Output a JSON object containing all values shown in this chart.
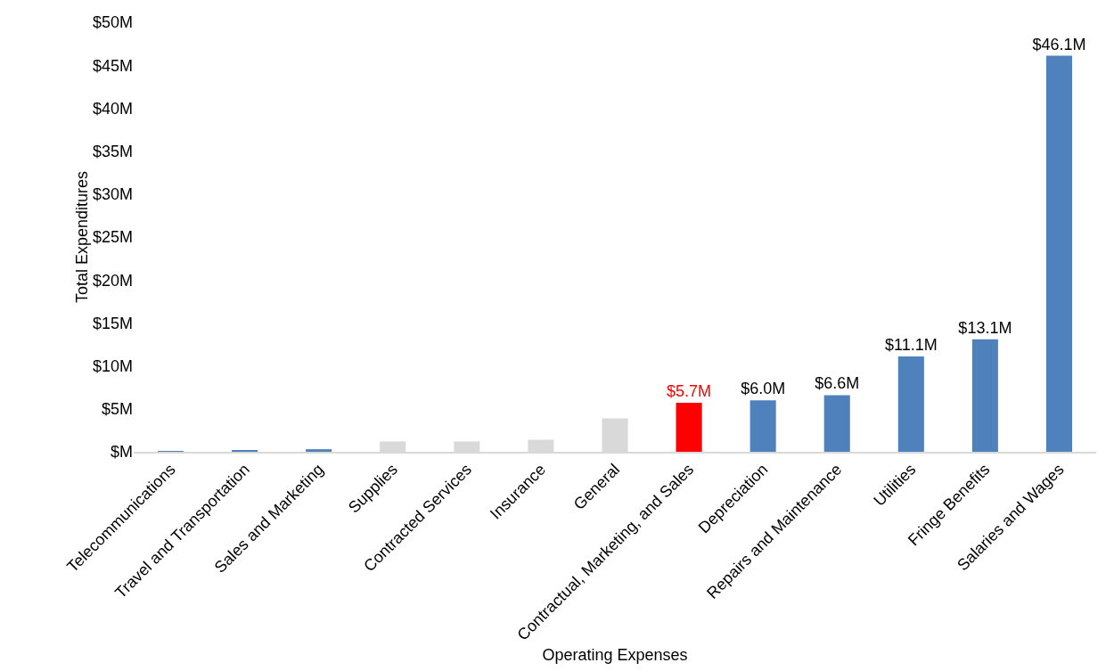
{
  "chart_data": {
    "type": "bar",
    "xlabel": "Operating Expenses",
    "ylabel": "Total Expenditures",
    "categories": [
      "Telecommunications",
      "Travel and Transportation",
      "Sales and Marketing",
      "Supplies",
      "Contracted Services",
      "Insurance",
      "General",
      "Contractual, Marketing, and Sales",
      "Depreciation",
      "Repairs and Maintenance",
      "Utilities",
      "Fringe Benefits",
      "Salaries and Wages"
    ],
    "values": [
      0.1,
      0.2,
      0.3,
      1.2,
      1.2,
      1.4,
      3.9,
      5.7,
      6.0,
      6.6,
      11.1,
      13.1,
      46.1
    ],
    "colors": [
      "#4f81bd",
      "#4f81bd",
      "#4f81bd",
      "#d9d9d9",
      "#d9d9d9",
      "#d9d9d9",
      "#d9d9d9",
      "#ff0000",
      "#4f81bd",
      "#4f81bd",
      "#4f81bd",
      "#4f81bd",
      "#4f81bd"
    ],
    "value_labels": [
      null,
      null,
      null,
      null,
      null,
      null,
      null,
      "$5.7M",
      "$6.0M",
      "$6.6M",
      "$11.1M",
      "$13.1M",
      "$46.1M"
    ],
    "ylim": [
      0,
      50
    ],
    "yticks": [
      {
        "value": 0,
        "label": "$M"
      },
      {
        "value": 5,
        "label": "$5M"
      },
      {
        "value": 10,
        "label": "$10M"
      },
      {
        "value": 15,
        "label": "$15M"
      },
      {
        "value": 20,
        "label": "$20M"
      },
      {
        "value": 25,
        "label": "$25M"
      },
      {
        "value": 30,
        "label": "$30M"
      },
      {
        "value": 35,
        "label": "$35M"
      },
      {
        "value": 40,
        "label": "$40M"
      },
      {
        "value": 45,
        "label": "$45M"
      },
      {
        "value": 50,
        "label": "$50M"
      }
    ],
    "grid": false,
    "legend": false
  }
}
